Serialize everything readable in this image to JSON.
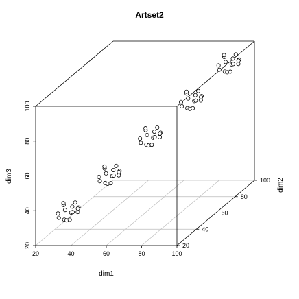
{
  "chart_data": {
    "type": "scatter3d",
    "title": "Artset2",
    "xlabel": "dim1",
    "ylabel": "dim2",
    "zlabel": "dim3",
    "xlim": [
      20,
      100
    ],
    "ylim": [
      20,
      100
    ],
    "zlim": [
      20,
      100
    ],
    "xticks": [
      20,
      40,
      60,
      80,
      100
    ],
    "yticks": [
      20,
      40,
      60,
      80,
      100
    ],
    "zticks": [
      20,
      40,
      60,
      80,
      100
    ],
    "grid": true,
    "color": "#000000",
    "x": [
      32,
      39,
      36,
      34,
      41,
      31,
      38,
      37,
      33,
      40,
      35,
      36,
      39,
      32,
      38,
      47,
      54,
      51,
      49,
      56,
      46,
      53,
      52,
      48,
      55,
      50,
      51,
      54,
      47,
      53,
      62,
      69,
      66,
      64,
      71,
      61,
      68,
      67,
      63,
      70,
      65,
      66,
      69,
      62,
      68,
      77,
      84,
      81,
      79,
      86,
      76,
      83,
      82,
      78,
      85,
      80,
      81,
      84,
      77,
      83,
      90,
      97,
      94,
      92,
      99,
      89,
      96,
      95,
      91,
      98,
      93,
      94,
      97,
      90,
      96
    ],
    "y": [
      27,
      22,
      29,
      24,
      26,
      23,
      28,
      21,
      25,
      27,
      23,
      26,
      29,
      22,
      25,
      42,
      37,
      44,
      39,
      41,
      38,
      43,
      36,
      40,
      42,
      38,
      41,
      44,
      37,
      40,
      57,
      52,
      59,
      54,
      56,
      53,
      58,
      51,
      55,
      57,
      53,
      56,
      59,
      52,
      55,
      72,
      67,
      74,
      69,
      71,
      68,
      73,
      66,
      70,
      72,
      68,
      71,
      74,
      67,
      70,
      87,
      82,
      89,
      84,
      86,
      83,
      88,
      81,
      85,
      87,
      83,
      86,
      89,
      82,
      85
    ],
    "z": [
      40,
      38,
      35,
      33,
      39,
      37,
      41,
      34,
      42,
      36,
      39,
      32,
      37,
      35,
      40,
      54,
      52,
      49,
      47,
      53,
      51,
      55,
      48,
      56,
      50,
      53,
      46,
      51,
      49,
      54,
      69,
      67,
      64,
      62,
      68,
      66,
      70,
      63,
      71,
      65,
      68,
      61,
      66,
      64,
      69,
      83,
      81,
      78,
      76,
      82,
      80,
      84,
      77,
      85,
      79,
      82,
      75,
      80,
      78,
      83,
      97,
      95,
      92,
      90,
      96,
      94,
      98,
      91,
      99,
      93,
      96,
      89,
      94,
      92,
      97
    ]
  }
}
